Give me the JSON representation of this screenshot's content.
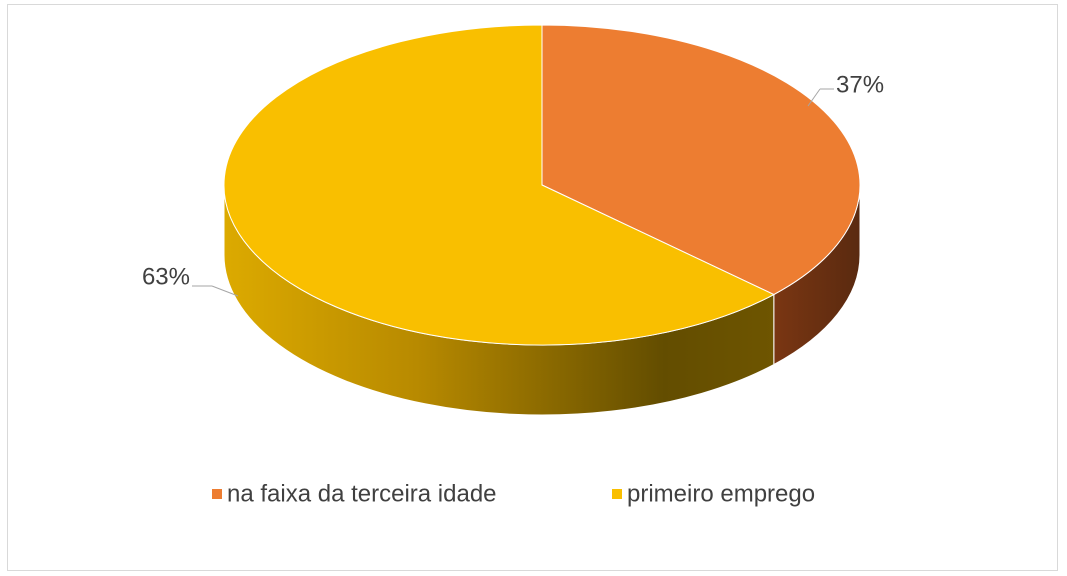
{
  "chart_data": {
    "type": "pie",
    "categories": [
      "na faixa da terceira idade",
      "primeiro emprego"
    ],
    "values": [
      37,
      63
    ],
    "value_labels": [
      "37%",
      "63%"
    ],
    "colors": [
      "#ed7d31",
      "#f9bf00"
    ],
    "legend": "bottom"
  }
}
